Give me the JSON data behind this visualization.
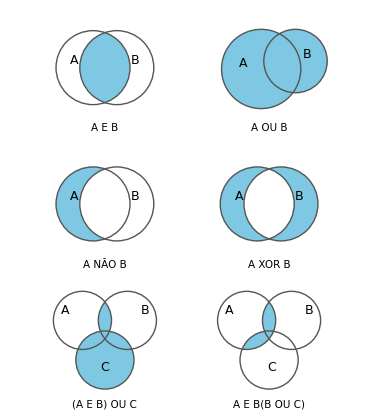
{
  "blue": "#7ec8e3",
  "white": "#ffffff",
  "bg": "#ffffff",
  "edge_color": "#555555",
  "labels": [
    "A E B",
    "A OU B",
    "A NÃO B",
    "A XOR B",
    "(A E B) OU C",
    "A E B(B OU C)"
  ],
  "label_fontsize": 7.5,
  "circle_label_fontsize": 9,
  "figsize": [
    3.74,
    4.17
  ],
  "dpi": 100
}
